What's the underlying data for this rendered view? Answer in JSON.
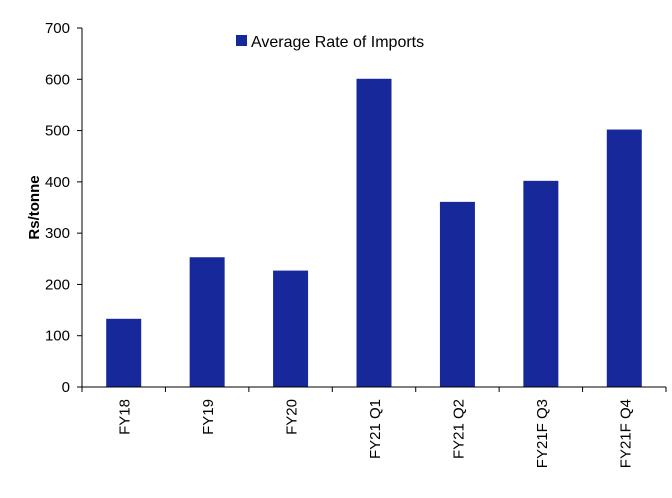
{
  "chart_data": {
    "type": "bar",
    "title": "",
    "xlabel": "",
    "ylabel": "Rs/tonne",
    "ylim": [
      0,
      700
    ],
    "yticks": [
      0,
      100,
      200,
      300,
      400,
      500,
      600,
      700
    ],
    "categories": [
      "FY18",
      "FY19",
      "FY20",
      "FY21 Q1",
      "FY21 Q2",
      "FY21F Q3",
      "FY21F Q4"
    ],
    "series": [
      {
        "name": "Average Rate of Imports",
        "values": [
          133,
          253,
          227,
          601,
          361,
          402,
          502
        ],
        "color": "#17299a"
      }
    ],
    "legend_position": "top",
    "grid": false
  }
}
